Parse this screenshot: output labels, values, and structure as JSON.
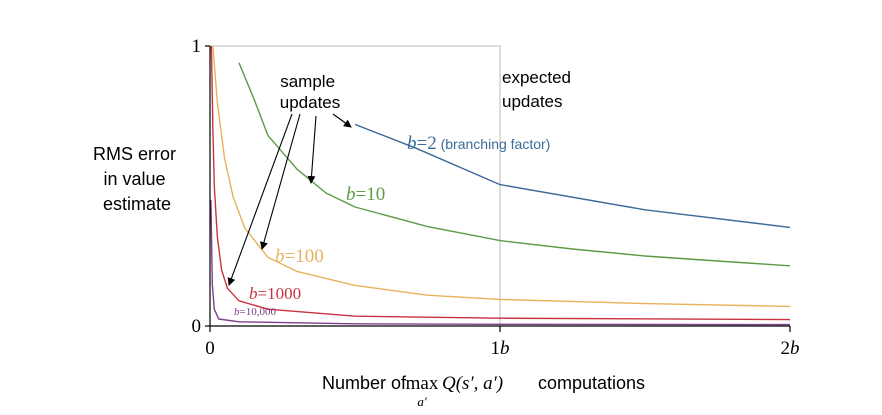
{
  "chart_data": {
    "type": "line",
    "ylabel": [
      "RMS error",
      "in value",
      "estimate"
    ],
    "xlabel": {
      "prefix": "Number of ",
      "max": "max",
      "sub": "a′",
      "expr": "Q(s′, a′)",
      "suffix": " computations"
    },
    "x_ticks": [
      {
        "x": 0,
        "label": "0"
      },
      {
        "x": 1,
        "num": "1",
        "sym": "b"
      },
      {
        "x": 2,
        "num": "2",
        "sym": "b"
      }
    ],
    "y_ticks": [
      {
        "y": 0,
        "label": "0"
      },
      {
        "y": 1,
        "label": "1"
      }
    ],
    "xlim": [
      0,
      2
    ],
    "ylim": [
      0,
      1
    ],
    "expected_box": {
      "x0": 0,
      "x1": 1,
      "y0": 0,
      "y1": 1,
      "color": "#bbbbbb"
    },
    "annotations": {
      "sample": [
        "sample",
        "updates"
      ],
      "expected": [
        "expected",
        "updates"
      ]
    },
    "series": [
      {
        "b": "2",
        "color": "#3c6a99",
        "extra": " (branching factor)",
        "points": [
          [
            0.5,
            0.72
          ],
          [
            0.71,
            0.635
          ],
          [
            1.0,
            0.505
          ],
          [
            1.5,
            0.415
          ],
          [
            2.0,
            0.352
          ]
        ]
      },
      {
        "b": "10",
        "color": "#5e9a46",
        "points": [
          [
            0.1,
            0.94
          ],
          [
            0.15,
            0.815
          ],
          [
            0.2,
            0.68
          ],
          [
            0.3,
            0.56
          ],
          [
            0.4,
            0.475
          ],
          [
            0.5,
            0.425
          ],
          [
            0.75,
            0.355
          ],
          [
            1.0,
            0.305
          ],
          [
            1.25,
            0.275
          ],
          [
            1.5,
            0.25
          ],
          [
            1.75,
            0.232
          ],
          [
            2.0,
            0.215
          ]
        ]
      },
      {
        "b": "100",
        "color": "#e8b25c",
        "points": [
          [
            0.01,
            1.0
          ],
          [
            0.025,
            0.8
          ],
          [
            0.05,
            0.6
          ],
          [
            0.08,
            0.46
          ],
          [
            0.12,
            0.35
          ],
          [
            0.2,
            0.245
          ],
          [
            0.3,
            0.195
          ],
          [
            0.5,
            0.145
          ],
          [
            0.75,
            0.11
          ],
          [
            1.0,
            0.095
          ],
          [
            1.5,
            0.08
          ],
          [
            2.0,
            0.07
          ]
        ]
      },
      {
        "b": "1000",
        "color": "#c8323f",
        "points": [
          [
            0.005,
            1.0
          ],
          [
            0.01,
            0.7
          ],
          [
            0.015,
            0.5
          ],
          [
            0.025,
            0.32
          ],
          [
            0.04,
            0.2
          ],
          [
            0.06,
            0.135
          ],
          [
            0.1,
            0.09
          ],
          [
            0.2,
            0.06
          ],
          [
            0.5,
            0.035
          ],
          [
            1.0,
            0.028
          ],
          [
            2.0,
            0.023
          ]
        ]
      },
      {
        "b": "10,000",
        "color": "#7b3f8a",
        "points": [
          [
            0.003,
            0.45
          ],
          [
            0.008,
            0.15
          ],
          [
            0.015,
            0.06
          ],
          [
            0.03,
            0.025
          ],
          [
            0.1,
            0.015
          ],
          [
            0.5,
            0.008
          ],
          [
            1.0,
            0.006
          ],
          [
            2.0,
            0.005
          ]
        ]
      }
    ]
  }
}
